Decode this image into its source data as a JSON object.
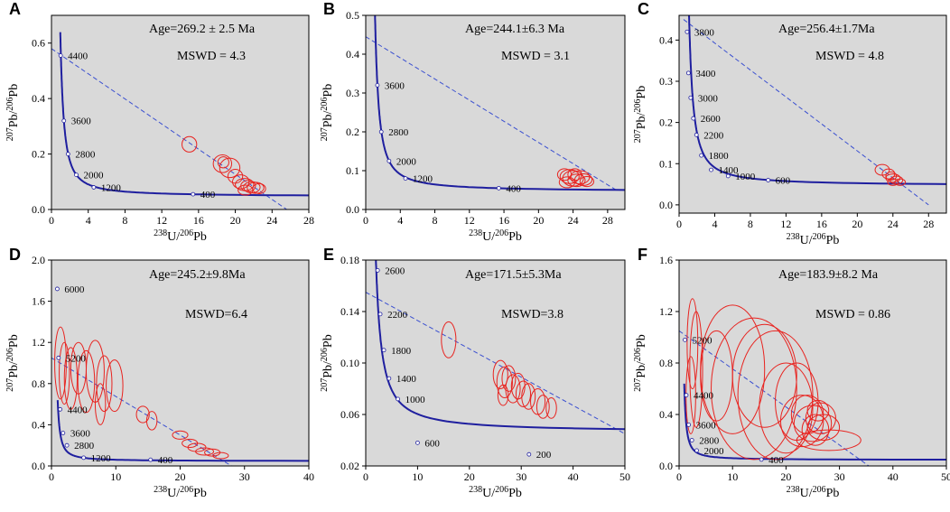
{
  "chart_data": [
    {
      "type": "scatter",
      "letter": "A",
      "age": "Age=269.2 ± 2.5 Ma",
      "mswd": "MSWD = 4.3",
      "xlabel": "238U/206Pb",
      "ylabel": "207Pb/206Pb",
      "xlim": [
        0,
        28
      ],
      "ylim": [
        0,
        0.7
      ],
      "xticks": [
        0,
        4,
        8,
        12,
        16,
        20,
        24,
        28
      ],
      "yticks": [
        0.0,
        0.2,
        0.4,
        0.6
      ],
      "ytick_labels": [
        "0.0",
        "0.2",
        "0.4",
        "0.6"
      ],
      "discordia": [
        [
          0,
          0.58
        ],
        [
          25.6,
          0
        ]
      ],
      "concordia_ages": [
        {
          "label": "4400",
          "x": 1.0,
          "y": 0.555
        },
        {
          "label": "3600",
          "x": 1.35,
          "y": 0.32
        },
        {
          "label": "2800",
          "x": 1.8,
          "y": 0.2
        },
        {
          "label": "2000",
          "x": 2.7,
          "y": 0.125
        },
        {
          "label": "1200",
          "x": 4.6,
          "y": 0.08
        },
        {
          "label": "400",
          "x": 15.4,
          "y": 0.055
        }
      ],
      "ellipses": [
        {
          "x": 15.0,
          "y": 0.235,
          "rx": 0.8,
          "ry": 0.028
        },
        {
          "x": 18.6,
          "y": 0.165,
          "rx": 1.0,
          "ry": 0.032
        },
        {
          "x": 18.7,
          "y": 0.17,
          "rx": 0.6,
          "ry": 0.02
        },
        {
          "x": 19.4,
          "y": 0.15,
          "rx": 1.1,
          "ry": 0.035
        },
        {
          "x": 20.0,
          "y": 0.12,
          "rx": 0.8,
          "ry": 0.025
        },
        {
          "x": 20.6,
          "y": 0.1,
          "rx": 0.9,
          "ry": 0.025
        },
        {
          "x": 21.0,
          "y": 0.09,
          "rx": 1.0,
          "ry": 0.022
        },
        {
          "x": 21.4,
          "y": 0.085,
          "rx": 0.8,
          "ry": 0.02
        },
        {
          "x": 21.8,
          "y": 0.08,
          "rx": 0.9,
          "ry": 0.02
        },
        {
          "x": 22.2,
          "y": 0.078,
          "rx": 0.9,
          "ry": 0.02
        },
        {
          "x": 22.6,
          "y": 0.075,
          "rx": 0.7,
          "ry": 0.018
        },
        {
          "x": 21.1,
          "y": 0.07,
          "rx": 0.8,
          "ry": 0.018
        }
      ]
    },
    {
      "type": "scatter",
      "letter": "B",
      "age": "Age=244.1±6.3 Ma",
      "mswd": "MSWD = 3.1",
      "xlabel": "238U/206Pb",
      "ylabel": "207Pb/206Pb",
      "xlim": [
        0,
        30
      ],
      "ylim": [
        0,
        0.5
      ],
      "xticks": [
        0,
        4,
        8,
        12,
        16,
        20,
        24,
        28
      ],
      "yticks": [
        0.0,
        0.1,
        0.2,
        0.3,
        0.4,
        0.5
      ],
      "ytick_labels": [
        "0.0",
        "0.1",
        "0.2",
        "0.3",
        "0.4",
        "0.5"
      ],
      "discordia": [
        [
          0,
          0.445
        ],
        [
          29,
          0.05
        ]
      ],
      "concordia_ages": [
        {
          "label": "3600",
          "x": 1.35,
          "y": 0.32
        },
        {
          "label": "2800",
          "x": 1.8,
          "y": 0.2
        },
        {
          "label": "2000",
          "x": 2.7,
          "y": 0.125
        },
        {
          "label": "1200",
          "x": 4.6,
          "y": 0.08
        },
        {
          "label": "400",
          "x": 15.4,
          "y": 0.055
        }
      ],
      "ellipses": [
        {
          "x": 23.0,
          "y": 0.09,
          "rx": 0.8,
          "ry": 0.015
        },
        {
          "x": 23.6,
          "y": 0.085,
          "rx": 1.1,
          "ry": 0.018
        },
        {
          "x": 24.0,
          "y": 0.08,
          "rx": 1.2,
          "ry": 0.02
        },
        {
          "x": 24.4,
          "y": 0.075,
          "rx": 1.0,
          "ry": 0.016
        },
        {
          "x": 24.8,
          "y": 0.083,
          "rx": 1.1,
          "ry": 0.017
        },
        {
          "x": 25.2,
          "y": 0.077,
          "rx": 1.0,
          "ry": 0.015
        },
        {
          "x": 23.3,
          "y": 0.07,
          "rx": 0.9,
          "ry": 0.014
        },
        {
          "x": 24.2,
          "y": 0.09,
          "rx": 0.8,
          "ry": 0.015
        },
        {
          "x": 25.6,
          "y": 0.072,
          "rx": 0.8,
          "ry": 0.013
        }
      ]
    },
    {
      "type": "scatter",
      "letter": "C",
      "age": "Age=256.4±1.7Ma",
      "mswd": "MSWD = 4.8",
      "xlabel": "238U/206Pb",
      "ylabel": "207Pb/206Pb",
      "xlim": [
        0,
        30
      ],
      "ylim": [
        -0.02,
        0.46
      ],
      "xticks": [
        0,
        4,
        8,
        12,
        16,
        20,
        24,
        28
      ],
      "yticks": [
        0.0,
        0.1,
        0.2,
        0.3,
        0.4
      ],
      "ytick_labels": [
        "0.0",
        "0.1",
        "0.2",
        "0.3",
        "0.4"
      ],
      "discordia": [
        [
          0.5,
          0.45
        ],
        [
          28,
          0
        ]
      ],
      "concordia_ages": [
        {
          "label": "3800",
          "x": 0.9,
          "y": 0.42
        },
        {
          "label": "3400",
          "x": 1.05,
          "y": 0.32
        },
        {
          "label": "3000",
          "x": 1.3,
          "y": 0.26
        },
        {
          "label": "2600",
          "x": 1.6,
          "y": 0.21
        },
        {
          "label": "2200",
          "x": 1.95,
          "y": 0.17
        },
        {
          "label": "1800",
          "x": 2.5,
          "y": 0.12
        },
        {
          "label": "1400",
          "x": 3.6,
          "y": 0.085
        },
        {
          "label": "1000",
          "x": 5.5,
          "y": 0.07
        },
        {
          "label": "600",
          "x": 10.0,
          "y": 0.06
        }
      ],
      "ellipses": [
        {
          "x": 22.8,
          "y": 0.085,
          "rx": 0.8,
          "ry": 0.013
        },
        {
          "x": 23.5,
          "y": 0.075,
          "rx": 0.7,
          "ry": 0.012
        },
        {
          "x": 24.0,
          "y": 0.065,
          "rx": 0.8,
          "ry": 0.01
        },
        {
          "x": 24.4,
          "y": 0.06,
          "rx": 0.7,
          "ry": 0.01
        },
        {
          "x": 24.0,
          "y": 0.055,
          "rx": 0.6,
          "ry": 0.008
        },
        {
          "x": 24.8,
          "y": 0.055,
          "rx": 0.6,
          "ry": 0.008
        },
        {
          "x": 23.8,
          "y": 0.07,
          "rx": 0.6,
          "ry": 0.01
        }
      ]
    },
    {
      "type": "scatter",
      "letter": "D",
      "age": "Age=245.2±9.8Ma",
      "mswd": "MSWD=6.4",
      "xlabel": "238U/206Pb",
      "ylabel": "207Pb/206Pb",
      "xlim": [
        0,
        40
      ],
      "ylim": [
        0,
        2.0
      ],
      "xticks": [
        0,
        10,
        20,
        30,
        40
      ],
      "yticks": [
        0.0,
        0.4,
        0.8,
        1.2,
        1.6,
        2.0
      ],
      "ytick_labels": [
        "0.0",
        "0.4",
        "0.8",
        "1.2",
        "1.6",
        "2.0"
      ],
      "discordia": [
        [
          0,
          1.05
        ],
        [
          28,
          0
        ]
      ],
      "concordia_ages": [
        {
          "label": "6000",
          "x": 0.9,
          "y": 1.72
        },
        {
          "label": "5200",
          "x": 1.1,
          "y": 1.05
        },
        {
          "label": "4400",
          "x": 1.35,
          "y": 0.55
        },
        {
          "label": "3600",
          "x": 1.8,
          "y": 0.32
        },
        {
          "label": "2800",
          "x": 2.4,
          "y": 0.2
        },
        {
          "label": "1200",
          "x": 5.0,
          "y": 0.08
        },
        {
          "label": "400",
          "x": 15.4,
          "y": 0.06
        }
      ],
      "ellipses": [
        {
          "x": 1.4,
          "y": 1.0,
          "rx": 0.9,
          "ry": 0.35
        },
        {
          "x": 2.0,
          "y": 0.9,
          "rx": 0.8,
          "ry": 0.3
        },
        {
          "x": 3.0,
          "y": 0.85,
          "rx": 1.0,
          "ry": 0.3
        },
        {
          "x": 4.2,
          "y": 0.95,
          "rx": 1.2,
          "ry": 0.25
        },
        {
          "x": 5.4,
          "y": 0.82,
          "rx": 1.3,
          "ry": 0.3
        },
        {
          "x": 6.8,
          "y": 0.92,
          "rx": 1.4,
          "ry": 0.3
        },
        {
          "x": 8.2,
          "y": 0.8,
          "rx": 1.2,
          "ry": 0.27
        },
        {
          "x": 9.8,
          "y": 0.78,
          "rx": 1.3,
          "ry": 0.25
        },
        {
          "x": 7.6,
          "y": 0.6,
          "rx": 0.8,
          "ry": 0.2
        },
        {
          "x": 14.2,
          "y": 0.5,
          "rx": 1.0,
          "ry": 0.08
        },
        {
          "x": 15.6,
          "y": 0.44,
          "rx": 0.8,
          "ry": 0.09
        },
        {
          "x": 20.0,
          "y": 0.3,
          "rx": 1.2,
          "ry": 0.04
        },
        {
          "x": 21.5,
          "y": 0.22,
          "rx": 1.2,
          "ry": 0.04
        },
        {
          "x": 22.6,
          "y": 0.18,
          "rx": 1.4,
          "ry": 0.04
        },
        {
          "x": 23.8,
          "y": 0.14,
          "rx": 1.4,
          "ry": 0.035
        },
        {
          "x": 25.0,
          "y": 0.13,
          "rx": 1.2,
          "ry": 0.035
        },
        {
          "x": 26.3,
          "y": 0.1,
          "rx": 1.2,
          "ry": 0.03
        }
      ]
    },
    {
      "type": "scatter",
      "letter": "E",
      "age": "Age=171.5±5.3Ma",
      "mswd": "MSWD=3.8",
      "xlabel": "238U/206Pb",
      "ylabel": "207Pb/206Pb",
      "xlim": [
        0,
        50
      ],
      "ylim": [
        0.02,
        0.18
      ],
      "xticks": [
        0,
        10,
        20,
        30,
        40,
        50
      ],
      "yticks": [
        0.02,
        0.06,
        0.1,
        0.14,
        0.18
      ],
      "ytick_labels": [
        "0.02",
        "0.06",
        "0.10",
        "0.14",
        "0.18"
      ],
      "discordia": [
        [
          0,
          0.155
        ],
        [
          50,
          0.045
        ]
      ],
      "concordia_ages": [
        {
          "label": "2600",
          "x": 2.3,
          "y": 0.172
        },
        {
          "label": "2200",
          "x": 2.8,
          "y": 0.138
        },
        {
          "label": "1800",
          "x": 3.5,
          "y": 0.11
        },
        {
          "label": "1400",
          "x": 4.5,
          "y": 0.088
        },
        {
          "label": "1000",
          "x": 6.2,
          "y": 0.072
        },
        {
          "label": "600",
          "x": 10.0,
          "y": 0.038
        },
        {
          "label": "200",
          "x": 31.5,
          "y": 0.029
        }
      ],
      "ellipses": [
        {
          "x": 16.0,
          "y": 0.118,
          "rx": 1.4,
          "ry": 0.014
        },
        {
          "x": 26.0,
          "y": 0.091,
          "rx": 1.4,
          "ry": 0.011
        },
        {
          "x": 26.8,
          "y": 0.085,
          "rx": 1.5,
          "ry": 0.012
        },
        {
          "x": 27.6,
          "y": 0.088,
          "rx": 1.3,
          "ry": 0.01
        },
        {
          "x": 28.4,
          "y": 0.08,
          "rx": 1.4,
          "ry": 0.011
        },
        {
          "x": 29.4,
          "y": 0.082,
          "rx": 1.3,
          "ry": 0.01
        },
        {
          "x": 30.4,
          "y": 0.076,
          "rx": 1.4,
          "ry": 0.01
        },
        {
          "x": 31.4,
          "y": 0.074,
          "rx": 1.3,
          "ry": 0.01
        },
        {
          "x": 33.2,
          "y": 0.07,
          "rx": 1.4,
          "ry": 0.01
        },
        {
          "x": 34.2,
          "y": 0.066,
          "rx": 1.2,
          "ry": 0.009
        },
        {
          "x": 35.8,
          "y": 0.065,
          "rx": 1.0,
          "ry": 0.008
        },
        {
          "x": 26.5,
          "y": 0.075,
          "rx": 1.0,
          "ry": 0.008
        }
      ]
    },
    {
      "type": "scatter",
      "letter": "F",
      "age": "Age=183.9±8.2 Ma",
      "mswd": "MSWD = 0.86",
      "xlabel": "238U/206Pb",
      "ylabel": "207Pb/206Pb",
      "xlim": [
        0,
        50
      ],
      "ylim": [
        0,
        1.6
      ],
      "xticks": [
        0,
        10,
        20,
        30,
        40,
        50
      ],
      "yticks": [
        0.0,
        0.4,
        0.8,
        1.2,
        1.6
      ],
      "ytick_labels": [
        "0.0",
        "0.4",
        "0.8",
        "1.2",
        "1.6"
      ],
      "discordia": [
        [
          0,
          1.05
        ],
        [
          35.5,
          0
        ]
      ],
      "concordia_ages": [
        {
          "label": "5200",
          "x": 1.1,
          "y": 0.98
        },
        {
          "label": "4400",
          "x": 1.35,
          "y": 0.55
        },
        {
          "label": "3600",
          "x": 1.8,
          "y": 0.32
        },
        {
          "label": "2800",
          "x": 2.4,
          "y": 0.2
        },
        {
          "label": "2000",
          "x": 3.3,
          "y": 0.12
        },
        {
          "label": "400",
          "x": 15.4,
          "y": 0.05
        }
      ],
      "ellipses": [
        {
          "x": 2.5,
          "y": 0.95,
          "rx": 1.0,
          "ry": 0.35
        },
        {
          "x": 3.2,
          "y": 0.75,
          "rx": 1.2,
          "ry": 0.45
        },
        {
          "x": 2.2,
          "y": 0.55,
          "rx": 0.9,
          "ry": 0.3
        },
        {
          "x": 7.0,
          "y": 0.7,
          "rx": 3.0,
          "ry": 0.35
        },
        {
          "x": 10.0,
          "y": 0.75,
          "rx": 6.0,
          "ry": 0.5
        },
        {
          "x": 14.0,
          "y": 0.6,
          "rx": 8.0,
          "ry": 0.55
        },
        {
          "x": 16.0,
          "y": 0.7,
          "rx": 6.0,
          "ry": 0.4
        },
        {
          "x": 18.0,
          "y": 0.55,
          "rx": 7.0,
          "ry": 0.5
        },
        {
          "x": 20.0,
          "y": 0.45,
          "rx": 5.0,
          "ry": 0.35
        },
        {
          "x": 22.0,
          "y": 0.5,
          "rx": 4.0,
          "ry": 0.3
        },
        {
          "x": 23.0,
          "y": 0.35,
          "rx": 4.0,
          "ry": 0.2
        },
        {
          "x": 24.0,
          "y": 0.4,
          "rx": 3.0,
          "ry": 0.15
        },
        {
          "x": 25.0,
          "y": 0.33,
          "rx": 3.5,
          "ry": 0.14
        },
        {
          "x": 25.5,
          "y": 0.28,
          "rx": 2.5,
          "ry": 0.12
        },
        {
          "x": 26.5,
          "y": 0.37,
          "rx": 2.8,
          "ry": 0.12
        },
        {
          "x": 27.0,
          "y": 0.3,
          "rx": 3.0,
          "ry": 0.1
        },
        {
          "x": 28.0,
          "y": 0.2,
          "rx": 6.0,
          "ry": 0.08
        },
        {
          "x": 26.0,
          "y": 0.43,
          "rx": 2.0,
          "ry": 0.08
        }
      ]
    }
  ]
}
